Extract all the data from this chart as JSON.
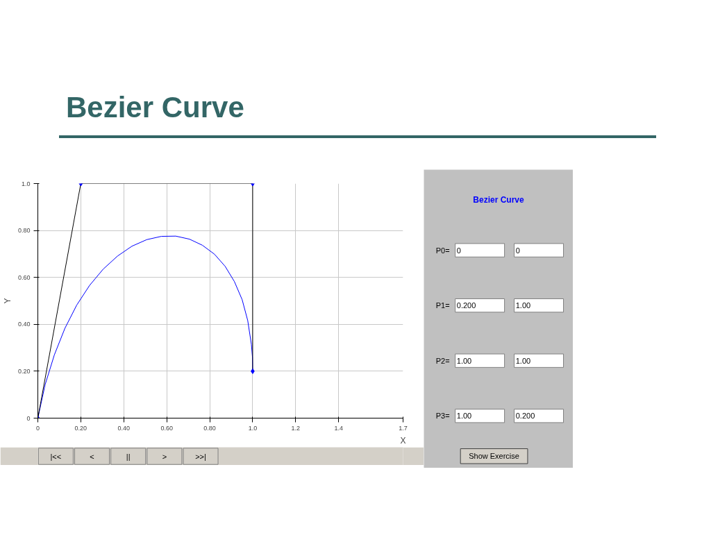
{
  "chart_data": {
    "type": "line",
    "title": "Bezier Curve",
    "xlabel": "X",
    "ylabel": "Y",
    "xlim": [
      0,
      1.7
    ],
    "ylim": [
      0,
      1.0
    ],
    "xticks": [
      0,
      {
        "value": 0.2,
        "label": "0.20"
      },
      {
        "value": 0.4,
        "label": "0.40"
      },
      {
        "value": 0.6,
        "label": "0.60"
      },
      {
        "value": 0.8,
        "label": "0.80"
      },
      {
        "value": 1.0,
        "label": "1.0"
      },
      1.2,
      1.4,
      1.7
    ],
    "yticks": [
      0,
      {
        "value": 0.2,
        "label": "0.20"
      },
      {
        "value": 0.4,
        "label": "0.40"
      },
      {
        "value": 0.6,
        "label": "0.60"
      },
      {
        "value": 0.8,
        "label": "0.80"
      },
      {
        "value": 1.0,
        "label": "1.0"
      }
    ],
    "grid": true,
    "series": [
      {
        "color": "#0000ff",
        "marker": "none",
        "x": [
          0,
          0.034,
          0.077,
          0.126,
          0.181,
          0.241,
          0.304,
          0.371,
          0.438,
          0.507,
          0.575,
          0.642,
          0.706,
          0.766,
          0.822,
          0.872,
          0.915,
          0.951,
          0.977,
          0.994,
          0.999,
          1.0
        ],
        "values": [
          0,
          0.143,
          0.27,
          0.383,
          0.482,
          0.566,
          0.635,
          0.691,
          0.733,
          0.761,
          0.775,
          0.776,
          0.763,
          0.737,
          0.699,
          0.647,
          0.582,
          0.505,
          0.416,
          0.314,
          0.259,
          0.2
        ]
      },
      {
        "color": "#000000",
        "marker": "none",
        "x": [
          0,
          0.2,
          1.0,
          1.0
        ],
        "values": [
          0,
          1.0,
          1.0,
          0.2
        ]
      },
      {
        "type": "scatter",
        "color": "#0000ff",
        "marker": "diamond",
        "x": [
          0,
          0.2,
          1.0,
          1.0
        ],
        "values": [
          0,
          1.0,
          1.0,
          0.2
        ]
      }
    ],
    "annotations": [
      "Bezier Curve",
      "P0=",
      "0",
      "0",
      "P1=",
      "0.200",
      "1.00",
      "P2=",
      "1.00",
      "1.00",
      "P3=",
      "1.00",
      "0.200",
      "Show Exercise",
      "|<<",
      "<",
      "||",
      ">",
      ">>|"
    ]
  }
}
